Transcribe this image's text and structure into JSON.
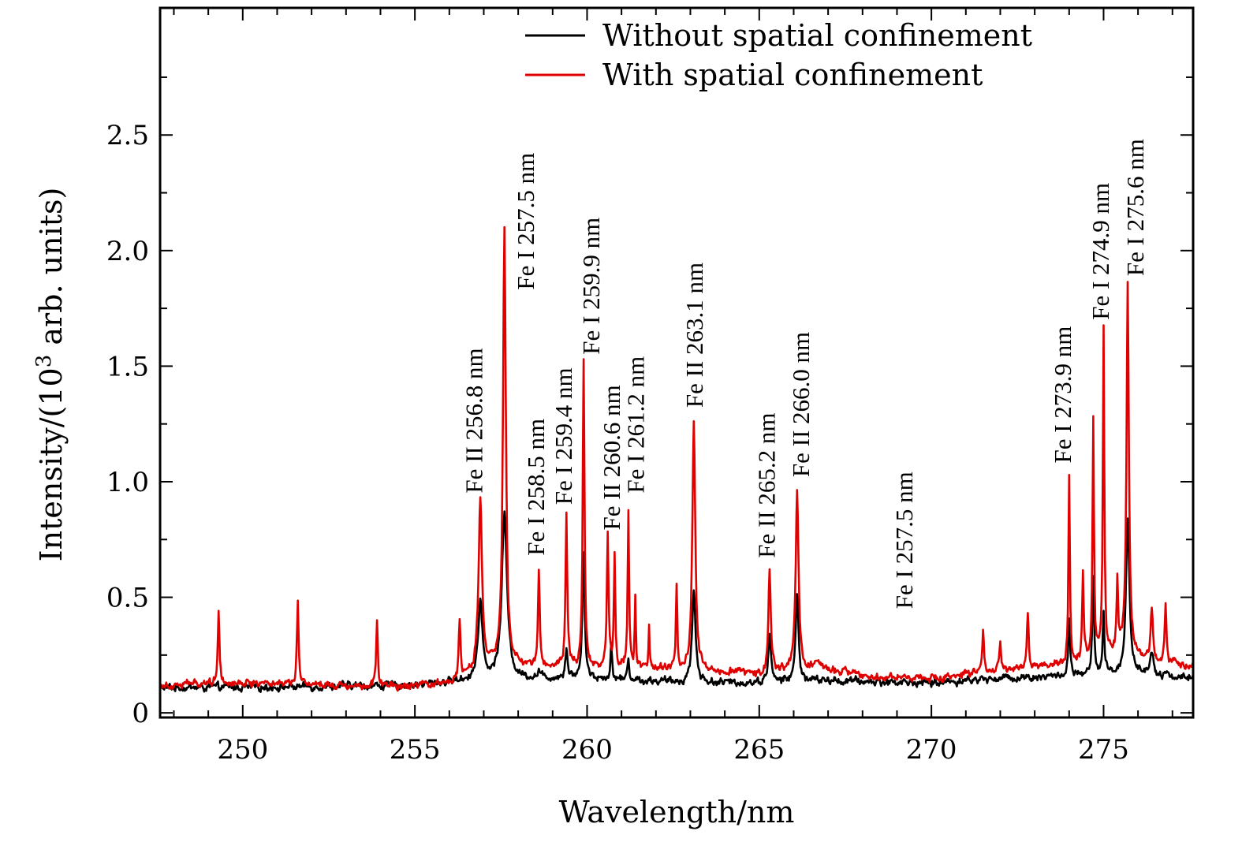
{
  "chart_data": {
    "type": "line",
    "title": "",
    "xlabel": "Wavelength/nm",
    "ylabel_parts": [
      "Intensity/(10",
      "3",
      " arb. units)"
    ],
    "xlim": [
      247.6,
      277.6
    ],
    "ylim": [
      -0.02,
      3.05
    ],
    "x_ticks": [
      250,
      255,
      260,
      265,
      270,
      275
    ],
    "x_tick_labels": [
      "250",
      "255",
      "260",
      "265",
      "270",
      "275"
    ],
    "x_minor_step": 1,
    "y_ticks": [
      0,
      0.5,
      1.0,
      1.5,
      2.0,
      2.5
    ],
    "y_tick_labels": [
      "0",
      "0.5",
      "1.0",
      "1.5",
      "2.0",
      "2.5"
    ],
    "y_minor_step": 0.25,
    "legend_position": "top-right",
    "series": [
      {
        "name": "Without spatial confinement",
        "color": "#000000",
        "baseline": [
          [
            247.6,
            0.11
          ],
          [
            250,
            0.11
          ],
          [
            255,
            0.12
          ],
          [
            256.5,
            0.14
          ],
          [
            258.5,
            0.15
          ],
          [
            260,
            0.15
          ],
          [
            263,
            0.13
          ],
          [
            265,
            0.13
          ],
          [
            266.5,
            0.14
          ],
          [
            270,
            0.13
          ],
          [
            272,
            0.15
          ],
          [
            274,
            0.16
          ],
          [
            276,
            0.17
          ],
          [
            277.6,
            0.15
          ]
        ],
        "peaks": [
          [
            256.9,
            0.46,
            0.08
          ],
          [
            257.6,
            0.86,
            0.09
          ],
          [
            258.6,
            0.18,
            0.04
          ],
          [
            259.4,
            0.28,
            0.04
          ],
          [
            259.9,
            0.7,
            0.04
          ],
          [
            260.7,
            0.29,
            0.03
          ],
          [
            261.2,
            0.24,
            0.03
          ],
          [
            263.1,
            0.53,
            0.06
          ],
          [
            265.3,
            0.33,
            0.05
          ],
          [
            266.1,
            0.51,
            0.05
          ],
          [
            274.0,
            0.4,
            0.03
          ],
          [
            274.7,
            0.58,
            0.03
          ],
          [
            275.0,
            0.42,
            0.03
          ],
          [
            275.7,
            0.84,
            0.06
          ],
          [
            276.4,
            0.27,
            0.06
          ]
        ]
      },
      {
        "name": "With spatial confinement",
        "color": "#e00000",
        "baseline": [
          [
            247.6,
            0.12
          ],
          [
            249,
            0.13
          ],
          [
            251,
            0.13
          ],
          [
            253,
            0.12
          ],
          [
            255,
            0.11
          ],
          [
            256,
            0.13
          ],
          [
            257.2,
            0.2
          ],
          [
            258.5,
            0.2
          ],
          [
            260,
            0.2
          ],
          [
            262,
            0.19
          ],
          [
            264,
            0.18
          ],
          [
            265,
            0.17
          ],
          [
            266.8,
            0.2
          ],
          [
            268,
            0.16
          ],
          [
            270,
            0.15
          ],
          [
            272,
            0.18
          ],
          [
            274,
            0.21
          ],
          [
            275.5,
            0.27
          ],
          [
            276.5,
            0.22
          ],
          [
            277.6,
            0.21
          ]
        ],
        "peaks": [
          [
            249.3,
            0.44,
            0.03
          ],
          [
            251.6,
            0.49,
            0.03
          ],
          [
            253.9,
            0.4,
            0.03
          ],
          [
            256.3,
            0.38,
            0.03
          ],
          [
            256.9,
            0.91,
            0.06
          ],
          [
            257.6,
            2.08,
            0.05
          ],
          [
            258.6,
            0.62,
            0.03
          ],
          [
            259.4,
            0.86,
            0.03
          ],
          [
            259.9,
            1.52,
            0.03
          ],
          [
            260.6,
            0.77,
            0.03
          ],
          [
            260.8,
            0.68,
            0.025
          ],
          [
            261.2,
            0.88,
            0.025
          ],
          [
            261.4,
            0.49,
            0.02
          ],
          [
            261.8,
            0.37,
            0.02
          ],
          [
            262.6,
            0.55,
            0.025
          ],
          [
            263.1,
            1.27,
            0.05
          ],
          [
            265.3,
            0.62,
            0.04
          ],
          [
            266.1,
            0.96,
            0.05
          ],
          [
            271.5,
            0.35,
            0.03
          ],
          [
            272.0,
            0.32,
            0.03
          ],
          [
            272.8,
            0.43,
            0.03
          ],
          [
            274.0,
            1.04,
            0.025
          ],
          [
            274.4,
            0.61,
            0.025
          ],
          [
            274.7,
            1.26,
            0.025
          ],
          [
            275.0,
            1.66,
            0.025
          ],
          [
            275.4,
            0.55,
            0.025
          ],
          [
            275.7,
            1.84,
            0.04
          ],
          [
            276.4,
            0.46,
            0.04
          ],
          [
            276.8,
            0.46,
            0.03
          ]
        ]
      }
    ],
    "annotations": [
      {
        "text": "Fe II 256.8 nm",
        "x": 256.7,
        "y": 0.95
      },
      {
        "text": "Fe I 257.5 nm",
        "x": 258.2,
        "y": 1.83
      },
      {
        "text": "Fe I 258.5 nm",
        "x": 258.5,
        "y": 0.68
      },
      {
        "text": "Fe I 259.4 nm",
        "x": 259.3,
        "y": 0.9
      },
      {
        "text": "Fe I 259.9 nm",
        "x": 260.1,
        "y": 1.55
      },
      {
        "text": "Fe II 260.6 nm",
        "x": 260.7,
        "y": 0.79
      },
      {
        "text": "Fe I 261.2 nm",
        "x": 261.4,
        "y": 0.95
      },
      {
        "text": "Fe II 263.1 nm",
        "x": 263.1,
        "y": 1.32
      },
      {
        "text": "Fe II 265.2 nm",
        "x": 265.2,
        "y": 0.67
      },
      {
        "text": "Fe II 266.0 nm",
        "x": 266.2,
        "y": 1.02
      },
      {
        "text": "Fe I 257.5 nm",
        "x": 269.2,
        "y": 0.45
      },
      {
        "text": "Fe I 273.9 nm",
        "x": 273.8,
        "y": 1.08
      },
      {
        "text": "Fe I 274.9 nm",
        "x": 274.9,
        "y": 1.7
      },
      {
        "text": "Fe I 275.6 nm",
        "x": 275.9,
        "y": 1.89
      }
    ]
  }
}
